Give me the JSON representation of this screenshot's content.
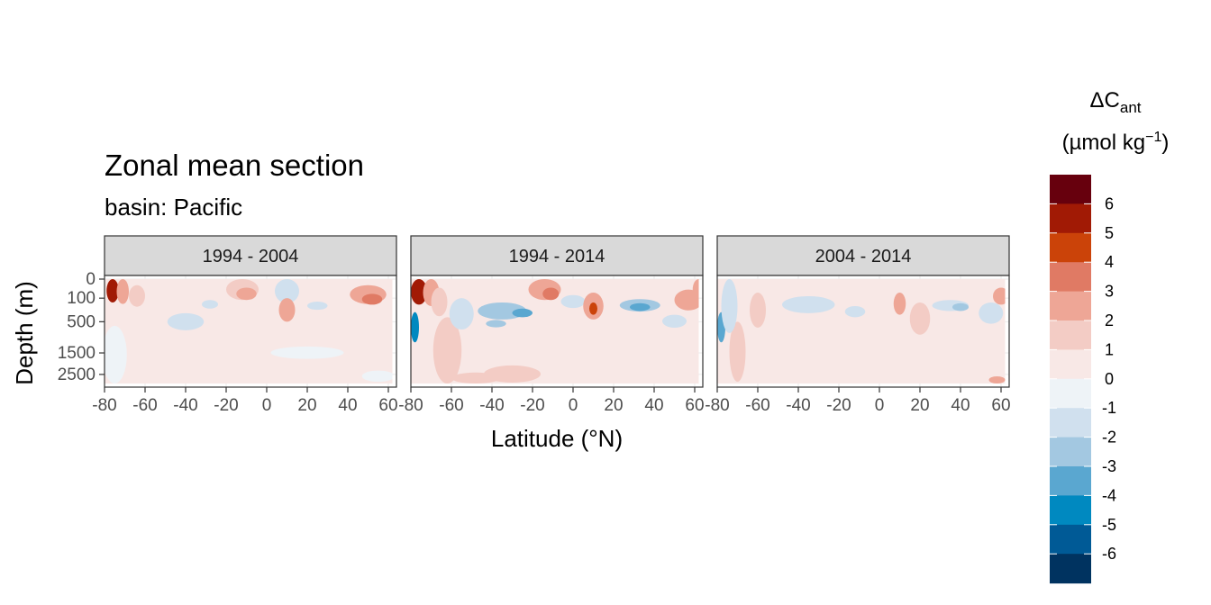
{
  "chart_data": {
    "type": "heatmap",
    "title": "Zonal mean section",
    "subtitle": "basin: Pacific",
    "xlabel": "Latitude (°N)",
    "ylabel": "Depth (m)",
    "x_ticks": [
      "-80",
      "-60",
      "-40",
      "-20",
      "0",
      "20",
      "40",
      "60"
    ],
    "y_ticks": [
      "0",
      "100",
      "500",
      "1500",
      "2500"
    ],
    "xlim": [
      -80,
      64
    ],
    "ylim": [
      3000,
      0
    ],
    "grid": true,
    "legend": {
      "position": "right",
      "title_main": "ΔC",
      "title_sub": "ant",
      "units_prefix": "(µmol kg",
      "units_sup": "−1",
      "units_suffix": ")",
      "labels": [
        "6",
        "5",
        "4",
        "3",
        "2",
        "1",
        "0",
        "-1",
        "-2",
        "-3",
        "-4",
        "-5",
        "-6"
      ],
      "colors": [
        "#67000d",
        "#a11a05",
        "#cb4309",
        "#e07a64",
        "#eea696",
        "#f3ccc5",
        "#f8e8e6",
        "#eef3f7",
        "#d0e0ee",
        "#a3c8e1",
        "#5aa7d0",
        "#0089c0",
        "#005a96",
        "#003360"
      ]
    },
    "panels": [
      {
        "label": "1994 - 2004",
        "blobs": [
          {
            "lat": -73,
            "depth": 200,
            "rx": 4,
            "ry": 800,
            "value": 0.5
          },
          {
            "lat": -76,
            "depth": 60,
            "rx": 3,
            "ry": 90,
            "value": 6
          },
          {
            "lat": -71,
            "depth": 80,
            "rx": 3,
            "ry": 90,
            "value": 3
          },
          {
            "lat": -64,
            "depth": 110,
            "rx": 4,
            "ry": 100,
            "value": 1.5
          },
          {
            "lat": -75,
            "depth": 1800,
            "rx": 6,
            "ry": 1200,
            "value": -0.7
          },
          {
            "lat": -40,
            "depth": 520,
            "rx": 9,
            "ry": 200,
            "value": -1.5
          },
          {
            "lat": -28,
            "depth": 180,
            "rx": 4,
            "ry": 60,
            "value": -1.3
          },
          {
            "lat": -12,
            "depth": 60,
            "rx": 8,
            "ry": 60,
            "value": 1.8
          },
          {
            "lat": -10,
            "depth": 70,
            "rx": 5,
            "ry": 50,
            "value": 3
          },
          {
            "lat": 10,
            "depth": 80,
            "rx": 6,
            "ry": 80,
            "value": -1.4
          },
          {
            "lat": 10,
            "depth": 300,
            "rx": 4,
            "ry": 200,
            "value": 2.2
          },
          {
            "lat": 25,
            "depth": 200,
            "rx": 5,
            "ry": 60,
            "value": -1.3
          },
          {
            "lat": 50,
            "depth": 90,
            "rx": 9,
            "ry": 80,
            "value": 2.3
          },
          {
            "lat": 52,
            "depth": 120,
            "rx": 5,
            "ry": 60,
            "value": 3.2
          },
          {
            "lat": 20,
            "depth": 1500,
            "rx": 18,
            "ry": 250,
            "value": -0.8
          },
          {
            "lat": 55,
            "depth": 2600,
            "rx": 8,
            "ry": 300,
            "value": -0.8
          }
        ]
      },
      {
        "label": "1994 - 2014",
        "blobs": [
          {
            "lat": -62,
            "depth": 1700,
            "rx": 7,
            "ry": 1300,
            "value": 1.6
          },
          {
            "lat": -48,
            "depth": 2700,
            "rx": 12,
            "ry": 300,
            "value": 1.6
          },
          {
            "lat": -30,
            "depth": 2500,
            "rx": 14,
            "ry": 450,
            "value": 1.5
          },
          {
            "lat": -76,
            "depth": 60,
            "rx": 4,
            "ry": 120,
            "value": 6
          },
          {
            "lat": -70,
            "depth": 90,
            "rx": 4,
            "ry": 110,
            "value": 3
          },
          {
            "lat": -66,
            "depth": 200,
            "rx": 4,
            "ry": 180,
            "value": 1.5
          },
          {
            "lat": -78,
            "depth": 700,
            "rx": 2,
            "ry": 400,
            "value": -4
          },
          {
            "lat": -55,
            "depth": 400,
            "rx": 6,
            "ry": 300,
            "value": -1.2
          },
          {
            "lat": -35,
            "depth": 300,
            "rx": 12,
            "ry": 150,
            "value": -2.4
          },
          {
            "lat": -25,
            "depth": 320,
            "rx": 5,
            "ry": 80,
            "value": -3.5
          },
          {
            "lat": -38,
            "depth": 550,
            "rx": 5,
            "ry": 90,
            "value": -2.6
          },
          {
            "lat": -14,
            "depth": 60,
            "rx": 8,
            "ry": 60,
            "value": 2.4
          },
          {
            "lat": -11,
            "depth": 70,
            "rx": 4,
            "ry": 50,
            "value": 3.3
          },
          {
            "lat": 0,
            "depth": 150,
            "rx": 6,
            "ry": 80,
            "value": -1.2
          },
          {
            "lat": 10,
            "depth": 250,
            "rx": 5,
            "ry": 200,
            "value": 2.8
          },
          {
            "lat": 10,
            "depth": 250,
            "rx": 2,
            "ry": 100,
            "value": 4.5
          },
          {
            "lat": 33,
            "depth": 200,
            "rx": 10,
            "ry": 90,
            "value": -2.3
          },
          {
            "lat": 33,
            "depth": 220,
            "rx": 5,
            "ry": 60,
            "value": -3.2
          },
          {
            "lat": 50,
            "depth": 500,
            "rx": 6,
            "ry": 150,
            "value": -1.2
          },
          {
            "lat": 57,
            "depth": 150,
            "rx": 7,
            "ry": 120,
            "value": 2.5
          },
          {
            "lat": 62,
            "depth": 60,
            "rx": 3,
            "ry": 60,
            "value": 3
          }
        ]
      },
      {
        "label": "2004 - 2014",
        "blobs": [
          {
            "lat": -70,
            "depth": 1700,
            "rx": 4,
            "ry": 1200,
            "value": 1.4
          },
          {
            "lat": -78,
            "depth": 700,
            "rx": 2,
            "ry": 400,
            "value": -3.5
          },
          {
            "lat": -74,
            "depth": 400,
            "rx": 4,
            "ry": 400,
            "value": -1.2
          },
          {
            "lat": -60,
            "depth": 350,
            "rx": 4,
            "ry": 300,
            "value": 1.3
          },
          {
            "lat": -35,
            "depth": 200,
            "rx": 13,
            "ry": 120,
            "value": -1.6
          },
          {
            "lat": -12,
            "depth": 300,
            "rx": 5,
            "ry": 100,
            "value": -1.4
          },
          {
            "lat": 10,
            "depth": 200,
            "rx": 3,
            "ry": 150,
            "value": 3
          },
          {
            "lat": 20,
            "depth": 500,
            "rx": 5,
            "ry": 350,
            "value": 1.6
          },
          {
            "lat": 35,
            "depth": 200,
            "rx": 9,
            "ry": 80,
            "value": -1.7
          },
          {
            "lat": 40,
            "depth": 220,
            "rx": 4,
            "ry": 60,
            "value": -2.5
          },
          {
            "lat": 55,
            "depth": 350,
            "rx": 6,
            "ry": 200,
            "value": -1.5
          },
          {
            "lat": 60,
            "depth": 100,
            "rx": 4,
            "ry": 80,
            "value": 2.2
          },
          {
            "lat": 58,
            "depth": 2800,
            "rx": 4,
            "ry": 200,
            "value": 2.2
          }
        ]
      }
    ]
  }
}
